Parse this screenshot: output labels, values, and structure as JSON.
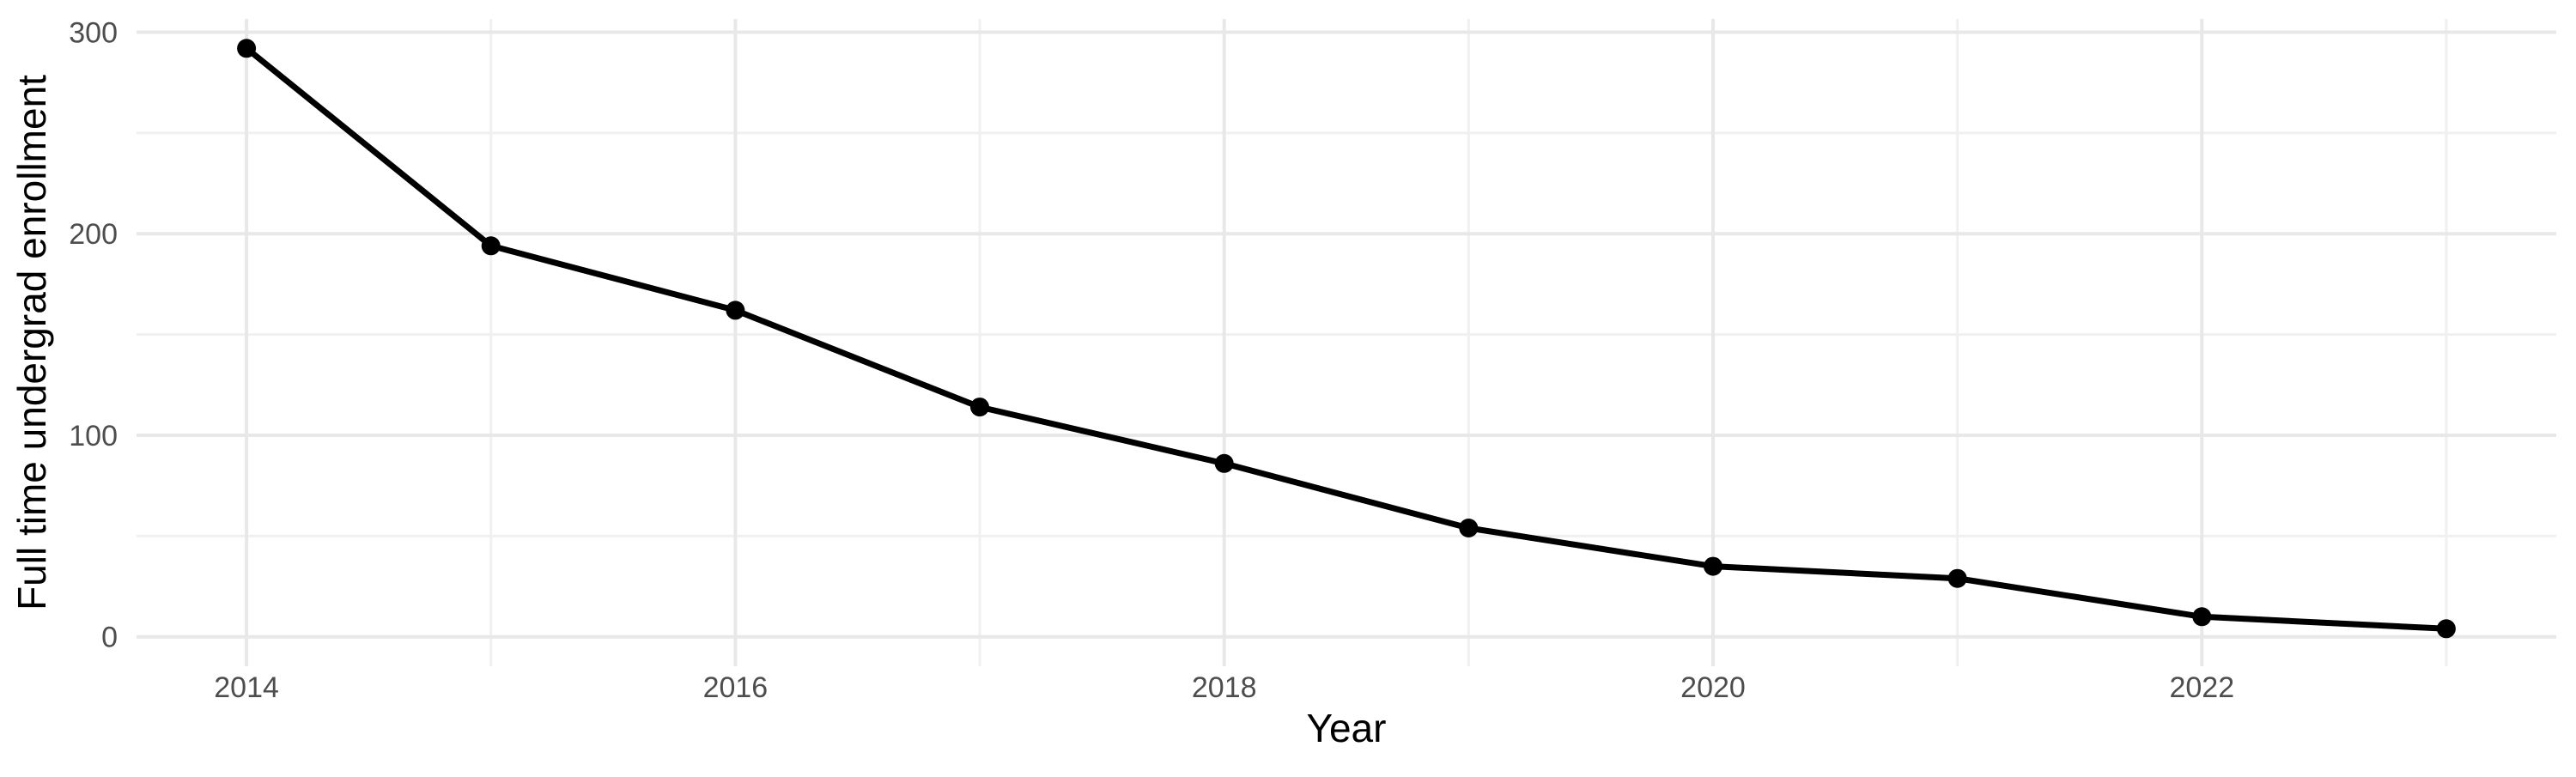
{
  "chart_data": {
    "type": "line",
    "title": "",
    "xlabel": "Year",
    "ylabel": "Full time undergrad enrollment",
    "x": [
      2014,
      2015,
      2016,
      2017,
      2018,
      2019,
      2020,
      2021,
      2022,
      2023
    ],
    "values": [
      292,
      194,
      162,
      114,
      86,
      54,
      35,
      29,
      10,
      4
    ],
    "series_name": "Full time undergrad enrollment",
    "x_major_ticks": [
      2014,
      2016,
      2018,
      2020,
      2022
    ],
    "x_minor_gridlines": [
      2015,
      2017,
      2019,
      2021,
      2023
    ],
    "y_major_ticks": [
      0,
      100,
      200,
      300
    ],
    "y_minor_gridlines": [
      50,
      150,
      250
    ],
    "xlim": [
      2013.55,
      2023.45
    ],
    "ylim": [
      -14.6,
      306.6
    ],
    "grid": true,
    "legend": false,
    "style": {
      "background": "#ffffff",
      "line_color": "#000000",
      "point_color": "#000000",
      "major_grid_color": "#e8e8e8",
      "minor_grid_color": "#f0f0f0",
      "tick_label_color": "#4d4d4d",
      "axis_title_color": "#000000"
    }
  }
}
